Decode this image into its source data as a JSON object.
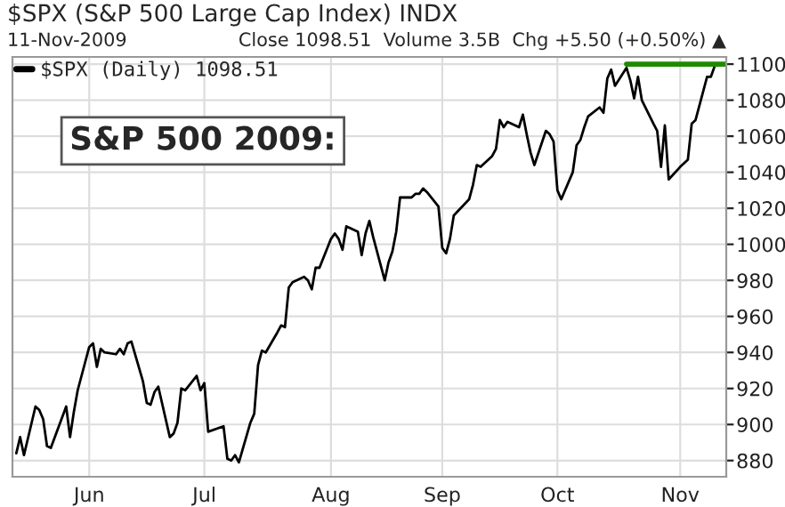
{
  "chart_data": {
    "type": "line",
    "title": "$SPX (S&P 500 Large Cap Index) INDX",
    "subtitle": "11-Nov-2009",
    "annotations": [
      "Close 1098.51  Volume 3.5B  Chg +5.50 (+0.50%) ▲",
      "S&P 500 2009:"
    ],
    "legend": "top left",
    "grid": true,
    "xlim": [
      "2009-05-12",
      "2009-11-14"
    ],
    "xticks": [
      {
        "value": "2009-06-01",
        "label": "Jun"
      },
      {
        "value": "2009-07-01",
        "label": "Jul"
      },
      {
        "value": "2009-08-03",
        "label": "Aug"
      },
      {
        "value": "2009-09-01",
        "label": "Sep"
      },
      {
        "value": "2009-10-01",
        "label": "Oct"
      },
      {
        "value": "2009-11-02",
        "label": "Nov"
      }
    ],
    "ylim": [
      871,
      1104
    ],
    "yticks": [
      880,
      900,
      920,
      940,
      960,
      980,
      1000,
      1020,
      1040,
      1060,
      1080,
      1100
    ],
    "series": [
      {
        "name": "$SPX (Daily) 1098.51",
        "color": "#000000",
        "x": [
          "2009-05-13",
          "2009-05-14",
          "2009-05-15",
          "2009-05-18",
          "2009-05-19",
          "2009-05-20",
          "2009-05-21",
          "2009-05-22",
          "2009-05-26",
          "2009-05-27",
          "2009-05-28",
          "2009-05-29",
          "2009-06-01",
          "2009-06-02",
          "2009-06-03",
          "2009-06-04",
          "2009-06-05",
          "2009-06-08",
          "2009-06-09",
          "2009-06-10",
          "2009-06-11",
          "2009-06-12",
          "2009-06-15",
          "2009-06-16",
          "2009-06-17",
          "2009-06-18",
          "2009-06-19",
          "2009-06-22",
          "2009-06-23",
          "2009-06-24",
          "2009-06-25",
          "2009-06-26",
          "2009-06-29",
          "2009-06-30",
          "2009-07-01",
          "2009-07-02",
          "2009-07-06",
          "2009-07-07",
          "2009-07-08",
          "2009-07-09",
          "2009-07-10",
          "2009-07-13",
          "2009-07-14",
          "2009-07-15",
          "2009-07-16",
          "2009-07-17",
          "2009-07-20",
          "2009-07-21",
          "2009-07-22",
          "2009-07-23",
          "2009-07-24",
          "2009-07-27",
          "2009-07-28",
          "2009-07-29",
          "2009-07-30",
          "2009-07-31",
          "2009-08-03",
          "2009-08-04",
          "2009-08-05",
          "2009-08-06",
          "2009-08-07",
          "2009-08-10",
          "2009-08-11",
          "2009-08-12",
          "2009-08-13",
          "2009-08-14",
          "2009-08-17",
          "2009-08-18",
          "2009-08-19",
          "2009-08-20",
          "2009-08-21",
          "2009-08-24",
          "2009-08-25",
          "2009-08-26",
          "2009-08-27",
          "2009-08-28",
          "2009-08-31",
          "2009-09-01",
          "2009-09-02",
          "2009-09-03",
          "2009-09-04",
          "2009-09-08",
          "2009-09-09",
          "2009-09-10",
          "2009-09-11",
          "2009-09-14",
          "2009-09-15",
          "2009-09-16",
          "2009-09-17",
          "2009-09-18",
          "2009-09-21",
          "2009-09-22",
          "2009-09-23",
          "2009-09-24",
          "2009-09-25",
          "2009-09-28",
          "2009-09-29",
          "2009-09-30",
          "2009-10-01",
          "2009-10-02",
          "2009-10-05",
          "2009-10-06",
          "2009-10-07",
          "2009-10-08",
          "2009-10-09",
          "2009-10-12",
          "2009-10-13",
          "2009-10-14",
          "2009-10-15",
          "2009-10-16",
          "2009-10-19",
          "2009-10-20",
          "2009-10-21",
          "2009-10-22",
          "2009-10-23",
          "2009-10-26",
          "2009-10-27",
          "2009-10-28",
          "2009-10-29",
          "2009-10-30",
          "2009-11-02",
          "2009-11-03",
          "2009-11-04",
          "2009-11-05",
          "2009-11-06",
          "2009-11-09",
          "2009-11-10",
          "2009-11-11"
        ],
        "values": [
          884,
          893,
          883,
          910,
          908,
          903,
          888,
          887,
          910,
          893,
          907,
          919,
          943,
          945,
          932,
          942,
          940,
          939,
          942,
          939,
          945,
          946,
          924,
          912,
          911,
          918,
          921,
          893,
          895,
          901,
          920,
          919,
          927,
          919,
          923,
          896,
          899,
          881,
          880,
          883,
          879,
          901,
          906,
          933,
          941,
          940,
          951,
          955,
          954,
          976,
          979,
          982,
          980,
          975,
          987,
          987,
          1003,
          1006,
          1003,
          997,
          1010,
          1007,
          994,
          1006,
          1013,
          1004,
          980,
          990,
          996,
          1007,
          1026,
          1026,
          1028,
          1028,
          1031,
          1029,
          1021,
          998,
          995,
          1003,
          1016,
          1025,
          1033,
          1044,
          1043,
          1049,
          1053,
          1069,
          1065,
          1068,
          1065,
          1072,
          1061,
          1051,
          1044,
          1063,
          1061,
          1057,
          1030,
          1025,
          1040,
          1055,
          1058,
          1065,
          1071,
          1076,
          1073,
          1092,
          1097,
          1088,
          1098,
          1091,
          1081,
          1093,
          1080,
          1067,
          1063,
          1043,
          1066,
          1036,
          1043,
          1045,
          1047,
          1067,
          1069,
          1093,
          1093,
          1099
        ]
      },
      {
        "color": "#1e8a00",
        "x": [
          "2009-10-19",
          "2009-11-14"
        ],
        "values": [
          1100,
          1100
        ]
      }
    ]
  }
}
